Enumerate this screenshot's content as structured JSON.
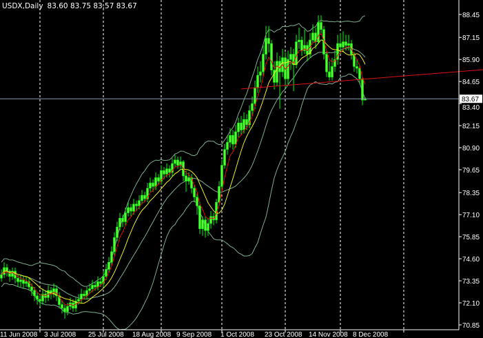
{
  "header": {
    "symbol": "USDX,Daily",
    "ohlc_text": "83.60 83.75 83.57 83.67"
  },
  "colors": {
    "background": "#000000",
    "candle": "#00ff00",
    "candle_fill": "#66ee44",
    "bands": "#7fae8f",
    "fast_ma": "#dd1111",
    "slow_ma": "#f0f020",
    "trendline": "#dd1111",
    "price_line": "#8c9bb0",
    "axis": "#ffffff",
    "grid": "#ffffff"
  },
  "chart_data": {
    "type": "candlestick",
    "title": "USDX,Daily",
    "first_date": "11 Jun 2008",
    "timeframe": "daily (weekdays)",
    "ylim": [
      70.85,
      88.45
    ],
    "grid": "vertical dashed period separators",
    "y_ticks": [
      "88.45",
      "87.15",
      "85.90",
      "84.65",
      "83.40",
      "82.15",
      "80.90",
      "79.65",
      "78.35",
      "77.10",
      "75.85",
      "74.60",
      "73.35",
      "72.10",
      "70.85"
    ],
    "x_labels": [
      "11 Jun 2008",
      "3 Jul 2008",
      "25 Jul 2008",
      "18 Aug 2008",
      "9 Sep 2008",
      "1 Oct 2008",
      "23 Oct 2008",
      "14 Nov 2008",
      "8 Dec 2008"
    ],
    "current_price": "83.67",
    "last_bar": {
      "open": 83.6,
      "high": 83.75,
      "low": 83.57,
      "close": 83.67
    },
    "first_open": 73.5,
    "close": [
      73.7,
      74.1,
      73.9,
      73.6,
      73.9,
      73.5,
      73.3,
      73.4,
      73.2,
      73.3,
      73.0,
      72.8,
      72.5,
      72.3,
      72.2,
      72.6,
      72.4,
      72.8,
      72.6,
      72.9,
      72.5,
      72.0,
      71.8,
      71.6,
      71.9,
      72.1,
      71.8,
      72.2,
      72.3,
      72.6,
      72.5,
      72.8,
      72.9,
      73.1,
      73.0,
      73.3,
      73.2,
      73.6,
      74.0,
      74.4,
      75.0,
      75.8,
      76.4,
      76.9,
      76.7,
      77.2,
      77.5,
      77.3,
      77.7,
      77.6,
      77.9,
      78.2,
      78.0,
      78.6,
      78.9,
      78.7,
      79.2,
      79.0,
      79.6,
      79.4,
      79.7,
      79.5,
      80.0,
      80.2,
      79.9,
      80.1,
      79.3,
      79.0,
      79.2,
      78.6,
      78.1,
      77.6,
      76.3,
      76.8,
      76.2,
      76.6,
      77.0,
      76.8,
      77.8,
      78.7,
      79.9,
      80.8,
      81.2,
      81.6,
      81.1,
      81.8,
      82.3,
      81.9,
      82.5,
      82.2,
      83.0,
      83.4,
      84.3,
      85.0,
      85.2,
      86.2,
      87.1,
      86.8,
      85.3,
      84.6,
      85.8,
      85.2,
      86.0,
      84.8,
      85.9,
      86.2,
      85.6,
      86.9,
      87.0,
      86.4,
      86.7,
      86.2,
      87.0,
      87.4,
      86.9,
      88.0,
      87.6,
      86.2,
      85.2,
      84.9,
      85.5,
      85.9,
      86.8,
      86.6,
      86.9,
      86.7,
      86.8,
      86.2,
      85.5,
      85.4,
      84.8,
      83.6,
      83.67
    ],
    "high": [
      74.0,
      74.4,
      74.3,
      74.0,
      74.1,
      74.1,
      73.7,
      73.7,
      73.6,
      73.6,
      73.5,
      73.2,
      73.0,
      72.7,
      72.6,
      72.9,
      72.8,
      73.1,
      73.0,
      73.2,
      73.1,
      72.7,
      72.2,
      72.0,
      72.1,
      72.4,
      72.3,
      72.4,
      72.6,
      72.9,
      72.8,
      73.0,
      73.2,
      73.4,
      73.3,
      73.6,
      73.5,
      73.9,
      74.3,
      74.7,
      75.3,
      76.1,
      76.7,
      77.2,
      77.1,
      77.5,
      77.8,
      77.7,
      78.0,
      77.9,
      78.2,
      78.5,
      78.4,
      78.9,
      79.2,
      79.1,
      79.5,
      79.4,
      79.9,
      79.8,
      80.0,
      79.9,
      80.3,
      80.5,
      80.4,
      80.4,
      80.2,
      79.6,
      79.5,
      79.4,
      78.8,
      78.3,
      77.8,
      77.0,
      77.0,
      76.9,
      77.3,
      77.2,
      78.0,
      79.0,
      80.2,
      81.1,
      81.6,
      82.0,
      81.9,
      82.2,
      82.6,
      82.7,
      82.9,
      82.8,
      83.3,
      83.8,
      84.7,
      85.5,
      85.8,
      86.7,
      87.8,
      87.8,
      87.0,
      85.8,
      86.3,
      86.1,
      86.5,
      86.3,
      86.4,
      86.6,
      86.5,
      87.3,
      87.7,
      87.2,
      87.6,
      86.9,
      87.4,
      87.9,
      87.7,
      88.4,
      88.4,
      87.8,
      86.4,
      85.8,
      86.0,
      86.4,
      87.3,
      87.4,
      87.5,
      87.3,
      87.3,
      87.0,
      86.3,
      85.9,
      85.6,
      84.9,
      83.75
    ],
    "low": [
      73.3,
      73.5,
      73.6,
      73.3,
      73.4,
      73.2,
      73.0,
      73.0,
      72.9,
      73.0,
      72.8,
      72.5,
      72.2,
      72.0,
      71.9,
      72.0,
      72.1,
      72.2,
      72.3,
      72.4,
      72.2,
      71.8,
      71.5,
      71.2,
      71.4,
      71.7,
      71.6,
      71.6,
      72.0,
      72.1,
      72.3,
      72.3,
      72.6,
      72.7,
      72.8,
      72.8,
      73.0,
      73.0,
      73.4,
      73.8,
      74.2,
      74.8,
      75.6,
      76.2,
      76.4,
      76.5,
      77.0,
      77.0,
      77.1,
      77.3,
      77.4,
      77.7,
      77.8,
      77.8,
      78.4,
      78.4,
      78.5,
      78.8,
      78.8,
      79.1,
      79.2,
      79.2,
      79.3,
      79.8,
      79.7,
      79.7,
      79.0,
      78.4,
      78.8,
      78.3,
      77.8,
      77.1,
      76.0,
      75.9,
      75.8,
      75.9,
      76.3,
      76.5,
      76.6,
      77.6,
      78.5,
      79.7,
      80.5,
      80.9,
      80.8,
      80.9,
      81.5,
      81.6,
      81.7,
      81.9,
      82.0,
      82.7,
      83.1,
      84.0,
      84.6,
      84.9,
      85.9,
      86.3,
      85.0,
      84.2,
      84.4,
      83.1,
      84.9,
      84.3,
      84.5,
      85.3,
      84.1,
      85.4,
      86.5,
      86.1,
      86.2,
      85.8,
      86.0,
      86.8,
      86.5,
      86.8,
      87.3,
      85.9,
      84.9,
      84.7,
      84.7,
      85.2,
      85.6,
      86.2,
      86.3,
      86.4,
      86.4,
      85.9,
      85.2,
      85.1,
      84.5,
      83.3,
      83.57
    ],
    "trendline": {
      "from": {
        "date": "10 Oct 2008",
        "price": 84.23
      },
      "to": {
        "date": "12 Dec 2008",
        "price": 84.79
      },
      "extends": "right"
    },
    "indicators": [
      "Bollinger Bands",
      "fast moving average (red)",
      "moving average (yellow)"
    ]
  }
}
